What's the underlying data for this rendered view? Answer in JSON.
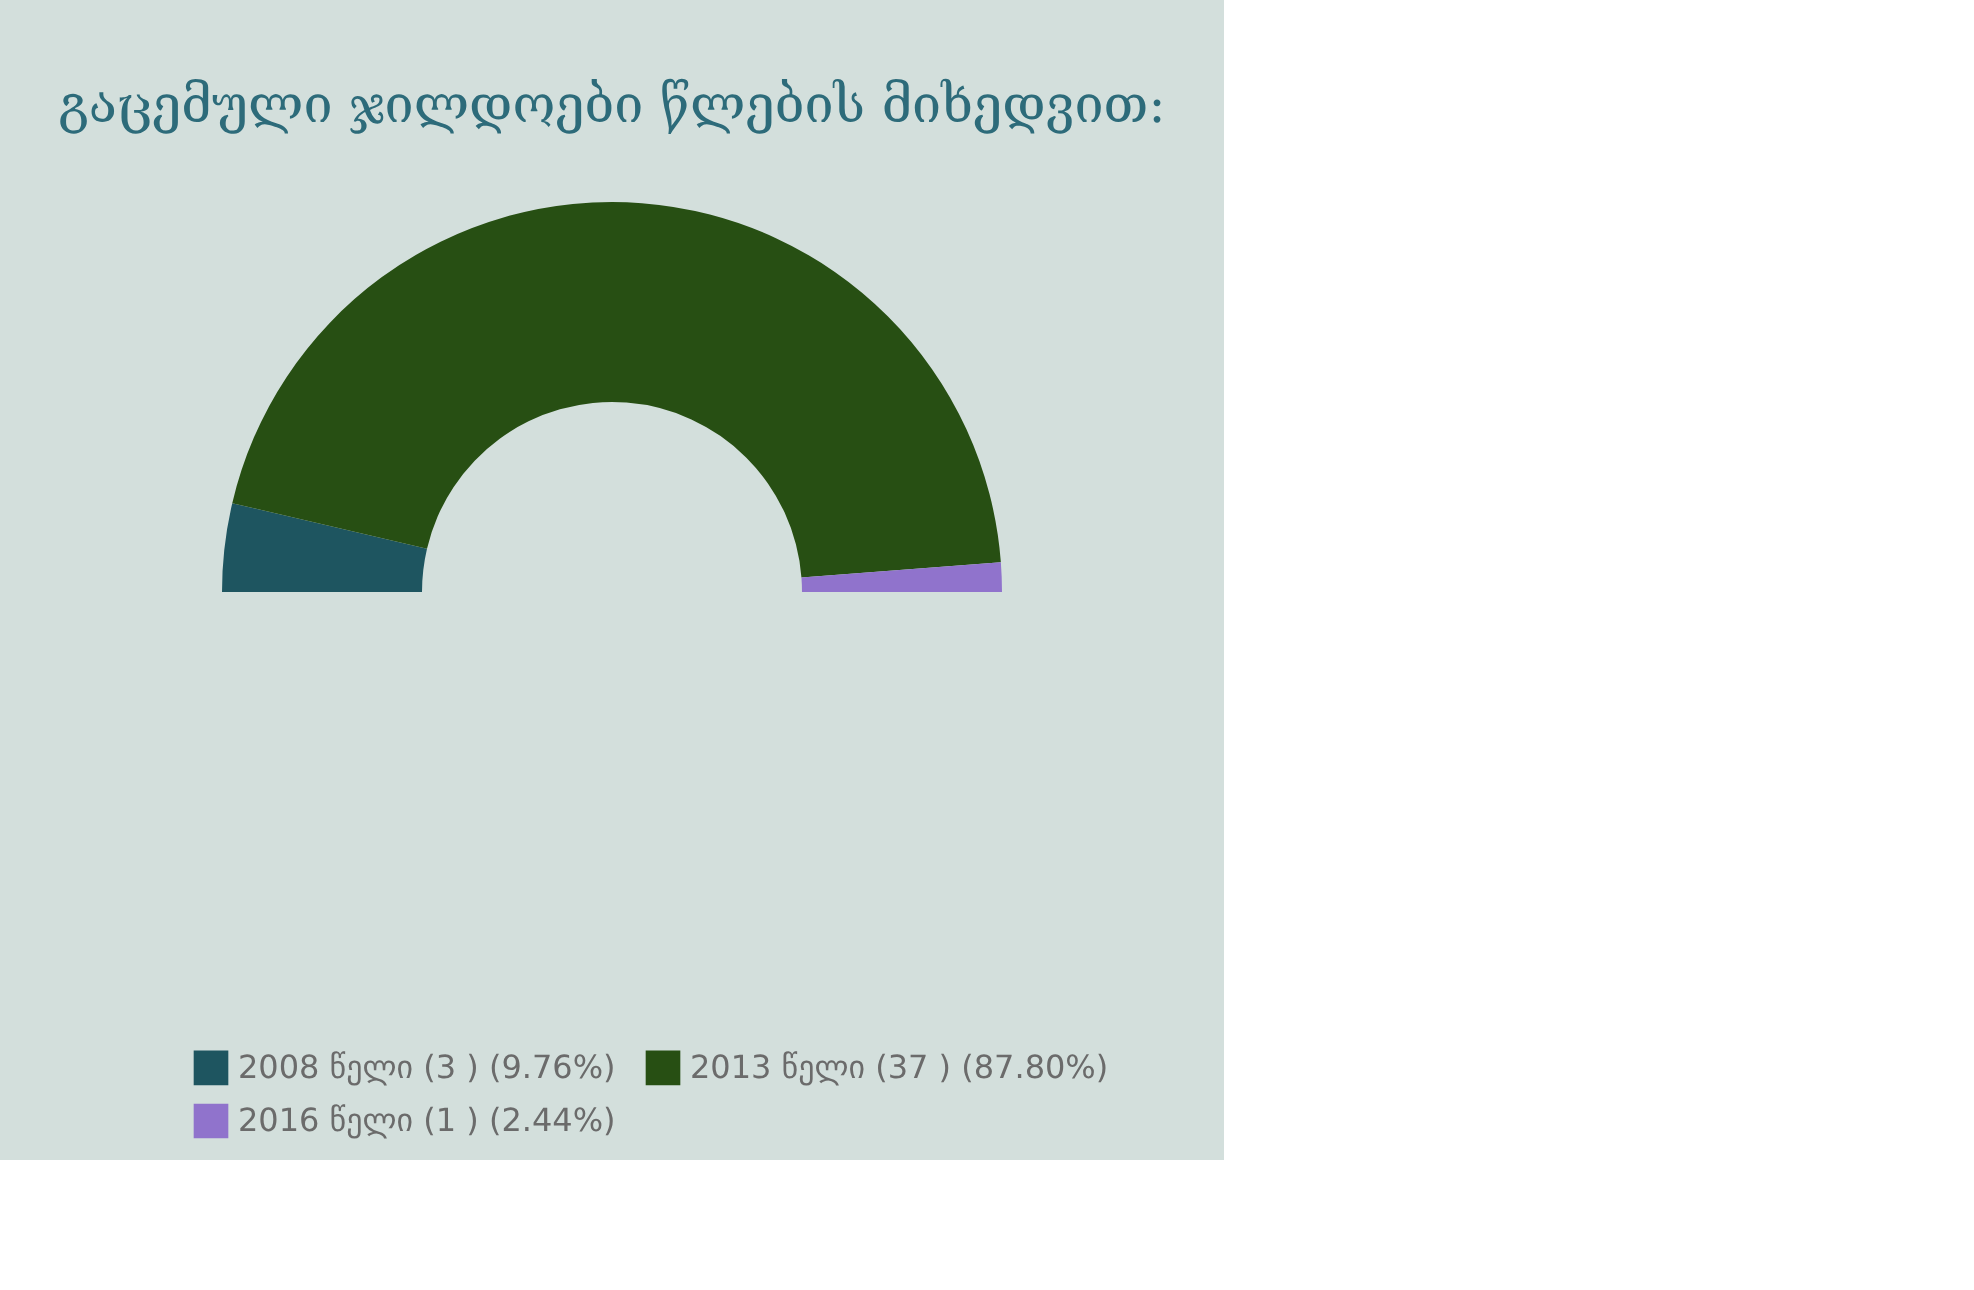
{
  "chart_data": {
    "type": "donut",
    "title": "გაცემული ჯილდოები   წლების მიხედვით:",
    "categories": [
      "2008 წელი",
      "2013 წელი",
      "2016 წელი"
    ],
    "values": [
      3,
      37,
      1
    ],
    "value_labels": [
      "(3 ) (9.76%)",
      "(37 ) (87.80%)",
      "(1 ) (2.44%)"
    ],
    "colors": [
      "#1e5560",
      "#274f13",
      "#9073cc"
    ],
    "legend": "bottom"
  }
}
